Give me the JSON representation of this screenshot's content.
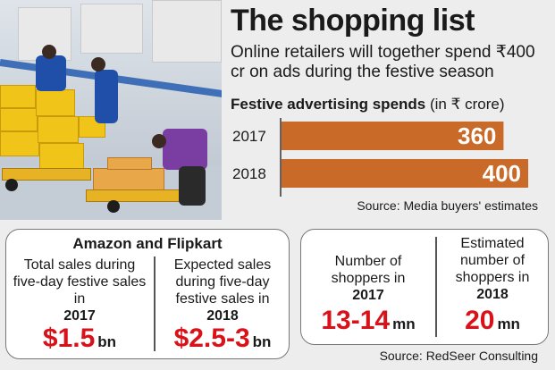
{
  "header": {
    "title": "The shopping list",
    "subtitle": "Online retailers will together spend ₹400 cr on ads during the festive season"
  },
  "chart_heading": {
    "main": "Festive advertising spends",
    "unit": "(in ₹ crore)"
  },
  "chart_data": {
    "type": "bar",
    "orientation": "horizontal",
    "title": "Festive advertising spends",
    "unit": "(in ₹ crore)",
    "categories": [
      "2017",
      "2018"
    ],
    "values": [
      360,
      400
    ],
    "value_labels": [
      "360",
      "400"
    ],
    "bar_color": "#c96a28",
    "grid": false,
    "source": "Source: Media buyers' estimates"
  },
  "left_panel": {
    "heading": "Amazon and Flipkart",
    "col1": {
      "text": "Total  sales during five-day festive sales in",
      "year": "2017",
      "value": "$1.5",
      "unit": "bn"
    },
    "col2": {
      "text": "Expected sales during five-day festive sales in",
      "year": "2018",
      "value": "$2.5-3",
      "unit": "bn"
    }
  },
  "right_panel": {
    "col1": {
      "text": "Number of shoppers in",
      "year": "2017",
      "value": "13-14",
      "unit": "mn"
    },
    "col2": {
      "text": "Estimated number of shoppers in",
      "year": "2018",
      "value": "20",
      "unit": "mn"
    }
  },
  "footer": {
    "source": "Source: RedSeer Consulting"
  },
  "colors": {
    "accent_red": "#d9121a",
    "bar_orange": "#c96a28",
    "background": "#ededed"
  }
}
